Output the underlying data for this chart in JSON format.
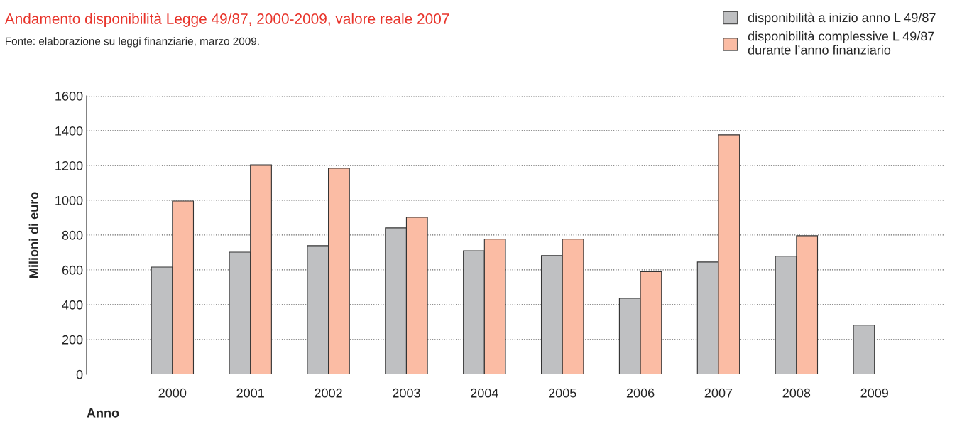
{
  "chart_data": {
    "type": "bar",
    "title": "Andamento disponibilità Legge 49/87, 2000-2009, valore reale 2007",
    "annotations": [
      "Fonte: elaborazione su leggi finanziarie, marzo 2009."
    ],
    "xlabel": "Anno",
    "ylabel": "Milioni di euro",
    "categories": [
      "2000",
      "2001",
      "2002",
      "2003",
      "2004",
      "2005",
      "2006",
      "2007",
      "2008",
      "2009"
    ],
    "series": [
      {
        "name": "disponibilità a inizio anno L 49/87",
        "color": "#bfc0c2",
        "values": [
          616,
          702,
          739,
          841,
          710,
          682,
          437,
          645,
          678,
          282
        ]
      },
      {
        "name": "disponibilità complessive L 49/87\ndurante l’anno finanziario",
        "color": "#fbbca4",
        "values": [
          996,
          1204,
          1184,
          902,
          776,
          776,
          590,
          1376,
          796,
          null
        ]
      }
    ],
    "ylim": [
      0,
      1600
    ],
    "yticks": [
      0,
      200,
      400,
      600,
      800,
      1000,
      1200,
      1400,
      1600
    ],
    "grid": "y",
    "legend": "top right"
  }
}
